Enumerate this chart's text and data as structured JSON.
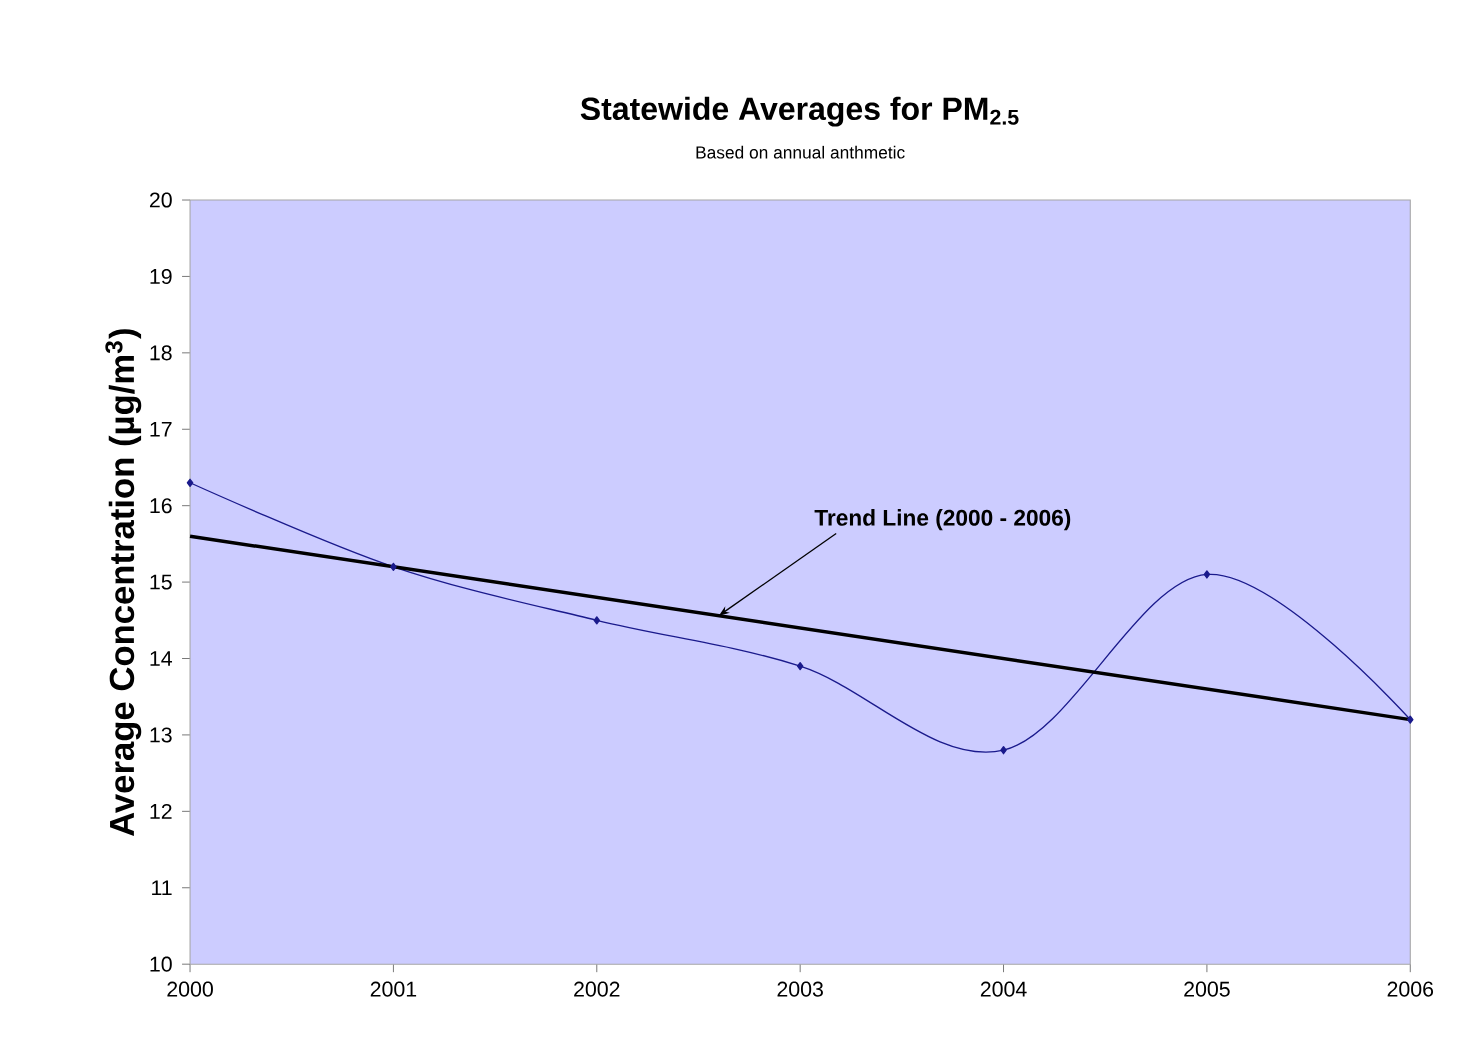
{
  "chart_data": {
    "type": "line",
    "title": "Statewide Averages for PM$_{2.5}$",
    "subtitle": "Based on annual anthmetic",
    "ylabel": "Average Concentration (µg/m$^{3}$)",
    "x": [
      2000,
      2001,
      2002,
      2003,
      2004,
      2005,
      2006
    ],
    "series": [
      {
        "color": "#1a1a8c",
        "marker": "diamond",
        "values": [
          16.3,
          15.2,
          14.5,
          13.9,
          12.8,
          15.1,
          13.2
        ]
      },
      {
        "color": "#000000",
        "marker": "none",
        "x": [
          2000,
          2006
        ],
        "values": [
          15.6,
          13.2
        ]
      }
    ],
    "annotations": [
      {
        "text": "Trend Line (2000 - 2006)",
        "x": 2002.6,
        "y": 14.56
      }
    ],
    "xlim": [
      2000,
      2006
    ],
    "xticks": [
      2000,
      2001,
      2002,
      2003,
      2004,
      2005,
      2006
    ],
    "ylim": [
      10,
      20
    ],
    "yticks": [
      10,
      11,
      12,
      13,
      14,
      15,
      16,
      17,
      18,
      19,
      20
    ]
  }
}
